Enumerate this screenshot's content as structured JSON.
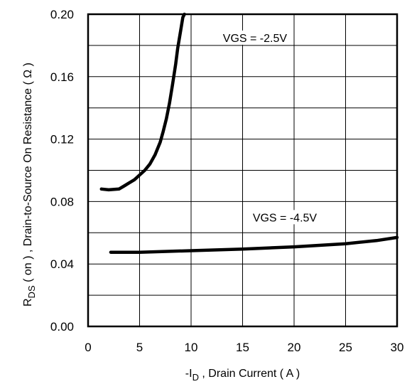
{
  "chart_data": {
    "type": "line",
    "x_ticks": [
      "0",
      "5",
      "10",
      "15",
      "20",
      "25",
      "30"
    ],
    "y_ticks": [
      "0.00",
      "0.04",
      "0.08",
      "0.12",
      "0.16",
      "0.20"
    ],
    "xlim": [
      0,
      30
    ],
    "ylim": [
      0,
      0.2
    ],
    "xlabel": {
      "prefix": "-I",
      "sub": "D",
      "rest": " , Drain Current ( A )"
    },
    "ylabel": {
      "prefix": "R",
      "sub": "DS",
      "rest": " ( on ) , Drain-to-Source On Resistance ( Ω )"
    },
    "grid": true,
    "series": [
      {
        "name": "VGS = -2.5V",
        "x": [
          1.3,
          2.0,
          3.0,
          3.5,
          4.0,
          4.5,
          5.0,
          5.5,
          6.0,
          6.5,
          7.0,
          7.3,
          7.6,
          7.9,
          8.2,
          8.5,
          8.7,
          9.0,
          9.2,
          9.35
        ],
        "y": [
          0.088,
          0.0875,
          0.088,
          0.09,
          0.092,
          0.094,
          0.097,
          0.1,
          0.104,
          0.11,
          0.118,
          0.125,
          0.133,
          0.143,
          0.155,
          0.168,
          0.178,
          0.19,
          0.198,
          0.2
        ]
      },
      {
        "name": "VGS = -4.5V",
        "x": [
          2.2,
          5.0,
          10.0,
          15.0,
          20.0,
          25.0,
          28.0,
          30.0
        ],
        "y": [
          0.0475,
          0.0475,
          0.0485,
          0.0495,
          0.051,
          0.053,
          0.055,
          0.057
        ]
      }
    ],
    "annotations": [
      {
        "text": "VGS = -2.5V",
        "x": 16.2,
        "y": 0.185
      },
      {
        "text": "VGS = -4.5V",
        "x": 19.1,
        "y": 0.07
      }
    ]
  }
}
